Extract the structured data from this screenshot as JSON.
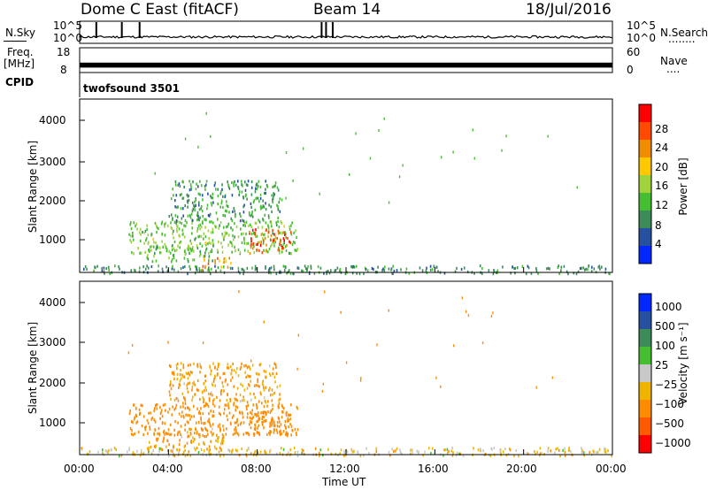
{
  "header": {
    "title": "Dome C East (fitACF)",
    "beam": "Beam 14",
    "date": "18/Jul/2016"
  },
  "noise_panel": {
    "label": "N.Sky",
    "left_ticks": [
      "10^5",
      "10^0"
    ],
    "right_ticks": [
      "10^5",
      "10^0"
    ],
    "right_label": "N.Search",
    "right_dots": "........"
  },
  "freq_panel": {
    "label_line1": "Freq.",
    "label_line2": "[MHz]",
    "left_ticks": [
      "18",
      "8"
    ],
    "right_ticks": [
      "60",
      "0"
    ],
    "right_label": "Nave",
    "right_dots": "...."
  },
  "cpid": {
    "label": "CPID",
    "value": "twofsound 3501"
  },
  "axes": {
    "ylabel": "Slant Range [km]",
    "y_ticks": [
      "4000",
      "3000",
      "2000",
      "1000"
    ],
    "x_ticks": [
      "00:00",
      "04:00",
      "08:00",
      "12:00",
      "16:00",
      "20:00",
      "00:00"
    ],
    "xlabel": "Time UT"
  },
  "power_colorbar": {
    "label": "Power [dB]",
    "ticks": [
      "28",
      "24",
      "20",
      "16",
      "12",
      "8",
      "4"
    ],
    "colors": [
      "#ff0000",
      "#ff4a00",
      "#f08c00",
      "#ffc800",
      "#a0d23c",
      "#46be32",
      "#3c8c5a",
      "#2850a0",
      "#0028ff"
    ]
  },
  "velocity_colorbar": {
    "label": "Velocity",
    "unit": "[m s⁻¹]",
    "ticks": [
      "1000",
      "500",
      "100",
      "25",
      "−25",
      "−100",
      "−500",
      "−1000"
    ],
    "colors": [
      "#0028ff",
      "#2850a0",
      "#3c8c5a",
      "#46be32",
      "#c8c8c8",
      "#f0b400",
      "#ff8c00",
      "#ff5a00",
      "#ff0000"
    ]
  },
  "chart_data": [
    {
      "type": "line",
      "title": "N.Sky / N.Search",
      "x_range_ut_hours": [
        0,
        24
      ],
      "y_scale": "log",
      "y_range": [
        "10^0",
        "10^5"
      ],
      "baseline_level_log10": 1.2,
      "spikes_ut_hours": [
        0.75,
        1.9,
        2.7,
        10.9,
        11.1,
        11.4
      ]
    },
    {
      "type": "line",
      "title": "Freq. / Nave",
      "x_range_ut_hours": [
        0,
        24
      ],
      "y_range_mhz": [
        8,
        18
      ],
      "freq_band_mhz": [
        10,
        12
      ]
    },
    {
      "type": "heatmap",
      "title": "Power [dB]",
      "x_label": "Time UT",
      "y_label": "Slant Range [km]",
      "x_range_ut_hours": [
        0,
        24
      ],
      "y_range_km": [
        200,
        4500
      ],
      "color_scale_db": [
        0,
        32
      ],
      "regions": [
        {
          "t0": 2.2,
          "t1": 9.8,
          "r0": 700,
          "r1": 1500,
          "value": 14
        },
        {
          "t0": 7.6,
          "t1": 9.5,
          "r0": 700,
          "r1": 1300,
          "value": 27
        },
        {
          "t0": 5.5,
          "t1": 6.8,
          "r0": 250,
          "r1": 600,
          "value": 22
        },
        {
          "t0": 3.0,
          "t1": 6.0,
          "r0": 500,
          "r1": 900,
          "value": 12
        },
        {
          "t0": 4.0,
          "t1": 9.0,
          "r0": 1500,
          "r1": 2500,
          "value": 10
        },
        {
          "t0": 0.0,
          "t1": 24.0,
          "r0": 200,
          "r1": 400,
          "value": 9
        }
      ]
    },
    {
      "type": "heatmap",
      "title": "Velocity [m s-1]",
      "x_label": "Time UT",
      "y_label": "Slant Range [km]",
      "x_range_ut_hours": [
        0,
        24
      ],
      "y_range_km": [
        200,
        4500
      ],
      "color_scale_ms": [
        -1000,
        1000
      ],
      "regions": [
        {
          "t0": 2.2,
          "t1": 9.8,
          "r0": 700,
          "r1": 1500,
          "value": -200
        },
        {
          "t0": 7.6,
          "t1": 9.5,
          "r0": 700,
          "r1": 1300,
          "value": -300
        },
        {
          "t0": 3.0,
          "t1": 6.5,
          "r0": 300,
          "r1": 900,
          "value": -100
        },
        {
          "t0": 4.0,
          "t1": 9.0,
          "r0": 1500,
          "r1": 2500,
          "value": -120
        },
        {
          "t0": 0.0,
          "t1": 24.0,
          "r0": 200,
          "r1": 400,
          "value": -40
        }
      ]
    }
  ]
}
